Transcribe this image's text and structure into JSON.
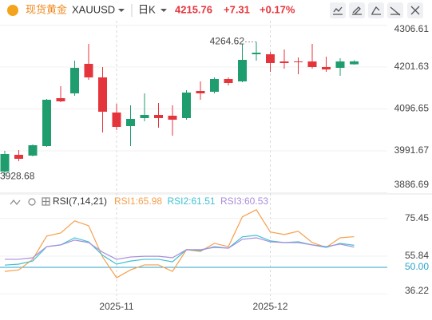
{
  "header": {
    "name": "现货黄金",
    "symbol": "XAUUSD",
    "period": "日K",
    "price": "4215.76",
    "change": "+7.31",
    "change_pct": "+0.17%"
  },
  "indicator": "RSI(7,14,21)",
  "chart_data": [
    {
      "type": "candlestick",
      "categories": [
        null,
        null,
        null,
        null,
        null,
        null,
        null,
        null,
        "2025-11",
        null,
        null,
        null,
        null,
        null,
        null,
        null,
        null,
        null,
        null,
        "2025-12",
        null,
        null,
        null,
        null,
        null,
        null
      ],
      "open": [
        3939.6,
        3981.6,
        3979.6,
        4003.6,
        4123.6,
        4135.6,
        4209.6,
        4175.6,
        4087.6,
        4053.6,
        4073.6,
        4081.6,
        4079.6,
        4073.6,
        4141.6,
        4139.6,
        4171.6,
        4165.6,
        4233.6,
        4233.6,
        4215.6,
        4215.6,
        4215.6,
        4201.6,
        4199.6,
        4208.45
      ],
      "high": [
        3991.6,
        3993.6,
        4007.6,
        4121.6,
        4153.6,
        4217.6,
        4259.6,
        4201.6,
        4109.6,
        4105.6,
        4135.6,
        4111.6,
        4105.6,
        4143.6,
        4165.6,
        4175.6,
        4175.6,
        4259.6,
        4264.62,
        4239.6,
        4245.6,
        4225.6,
        4259.6,
        4227.6,
        4223.6,
        4218.6
      ],
      "low": [
        3928.68,
        3965.6,
        3977.6,
        4001.6,
        4113.6,
        4129.6,
        4169.6,
        4037.6,
        4043.6,
        4003.6,
        4065.6,
        4049.6,
        4029.6,
        4069.6,
        4119.6,
        4135.6,
        4155.6,
        4163.6,
        4217.6,
        4189.6,
        4197.6,
        4183.6,
        4197.6,
        4189.6,
        4179.6,
        4207.6
      ],
      "close": [
        3983.6,
        3971.6,
        4005.6,
        4119.6,
        4115.6,
        4199.6,
        4175.6,
        4089.6,
        4051.6,
        4071.6,
        4081.6,
        4073.6,
        4069.6,
        4137.6,
        4135.6,
        4171.6,
        4161.6,
        4219.6,
        4237.6,
        4211.6,
        4211.6,
        4213.6,
        4201.6,
        4195.6,
        4215.6,
        4215.76
      ],
      "up_color": "#1f9d6e",
      "down_color": "#e5353c",
      "ylim": [
        3883.6,
        4317.6
      ],
      "yticks": [
        3886.69,
        3991.67,
        4096.65,
        4201.63,
        4306.61
      ],
      "annotations": {
        "high_index": 18,
        "low_index": 0
      }
    },
    {
      "type": "line",
      "series": [
        {
          "name": "RSI1:65.98",
          "color": "#f5a04c",
          "values": [
            47.9,
            48.7,
            54.2,
            66.3,
            67.9,
            74.2,
            71.7,
            55.4,
            44.6,
            48.7,
            51.3,
            51.3,
            47.9,
            59.2,
            58.3,
            62.5,
            60.8,
            76.3,
            80.0,
            68.4,
            67.1,
            68.8,
            62.9,
            60.4,
            65.4,
            65.98
          ]
        },
        {
          "name": "RSI2:61.51",
          "color": "#3ec1d3",
          "values": [
            51.2,
            51.7,
            53.3,
            60.8,
            61.7,
            65.4,
            63.3,
            56.3,
            51.7,
            53.3,
            54.2,
            54.2,
            52.9,
            59.2,
            58.8,
            60.8,
            60.0,
            65.9,
            66.7,
            63.8,
            62.9,
            63.3,
            61.7,
            60.4,
            62.5,
            61.51
          ]
        },
        {
          "name": "RSI3:60.53",
          "color": "#a98ddb",
          "values": [
            54.2,
            54.2,
            55.0,
            60.8,
            61.7,
            64.2,
            62.9,
            57.9,
            54.2,
            55.4,
            55.8,
            55.8,
            55.0,
            59.2,
            59.2,
            60.4,
            60.0,
            64.6,
            65.4,
            63.3,
            62.9,
            62.9,
            61.7,
            60.8,
            62.1,
            60.53
          ]
        }
      ],
      "ylim": [
        33,
        82
      ],
      "yticks": [
        36.22,
        {
          "value": 50,
          "label": "50.00"
        },
        55.84,
        75.45
      ],
      "reference_color": "#2aa3c8"
    }
  ]
}
